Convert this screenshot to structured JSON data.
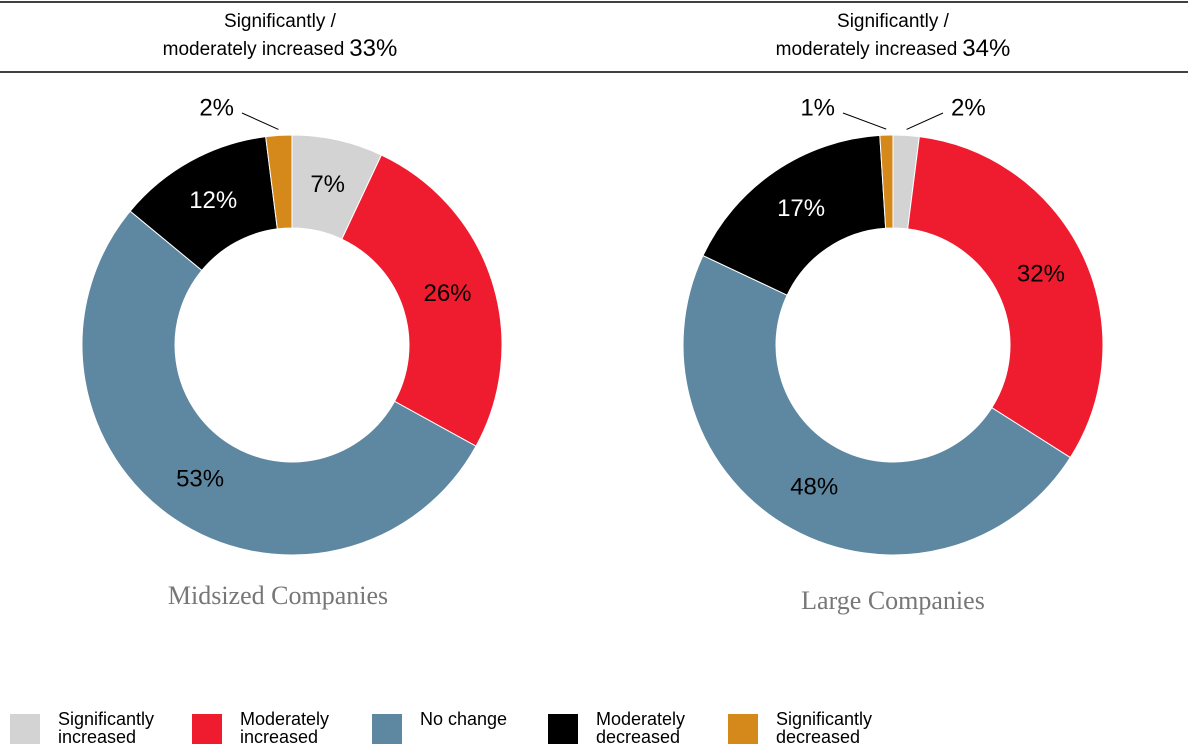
{
  "headers": [
    {
      "line1": "Significantly /",
      "line2": "moderately increased",
      "value_label": "33%"
    },
    {
      "line1": "Significantly /",
      "line2": "moderately increased",
      "value_label": "34%"
    }
  ],
  "chart_data": [
    {
      "type": "pie",
      "donut": true,
      "title": "Midsized Companies",
      "categories": [
        "Significantly increased",
        "Moderately increased",
        "No change",
        "Moderately decreased",
        "Significantly decreased"
      ],
      "values": [
        7,
        26,
        53,
        12,
        2
      ],
      "value_labels": [
        "7%",
        "26%",
        "53%",
        "12%",
        "2%"
      ],
      "colors": [
        "#d3d3d3",
        "#ee1c2e",
        "#5e87a1",
        "#000000",
        "#d4891a"
      ]
    },
    {
      "type": "pie",
      "donut": true,
      "title": "Large Companies",
      "categories": [
        "Significantly increased",
        "Moderately increased",
        "No change",
        "Moderately decreased",
        "Significantly decreased"
      ],
      "values": [
        2,
        32,
        48,
        17,
        1
      ],
      "value_labels": [
        "2%",
        "32%",
        "48%",
        "17%",
        "1%"
      ],
      "colors": [
        "#d3d3d3",
        "#ee1c2e",
        "#5e87a1",
        "#000000",
        "#d4891a"
      ]
    }
  ]
}
